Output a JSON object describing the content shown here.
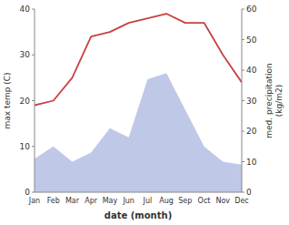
{
  "chart_data": {
    "type": "line",
    "categories": [
      "Jan",
      "Feb",
      "Mar",
      "Apr",
      "May",
      "Jun",
      "Jul",
      "Aug",
      "Sep",
      "Oct",
      "Nov",
      "Dec"
    ],
    "series": [
      {
        "type": "area",
        "axis": "y2",
        "color": "#c0c8e8",
        "values": [
          11,
          15,
          10,
          13,
          21,
          18,
          37,
          39,
          27,
          15,
          10,
          9
        ]
      },
      {
        "type": "line",
        "color": "#c94040",
        "values": [
          19,
          20,
          25,
          34,
          35,
          37,
          38,
          39,
          37,
          37,
          30,
          24
        ]
      }
    ],
    "xlabel": "date (month)",
    "ylabel": "max temp (C)",
    "y2label": "med. precipitation\n(kg/m2)",
    "ylim": [
      0,
      40
    ],
    "yticks": [
      0,
      10,
      20,
      30,
      40
    ],
    "y2lim": [
      0,
      60
    ],
    "y2ticks": [
      0,
      10,
      20,
      30,
      40,
      50,
      60
    ],
    "grid": false
  }
}
